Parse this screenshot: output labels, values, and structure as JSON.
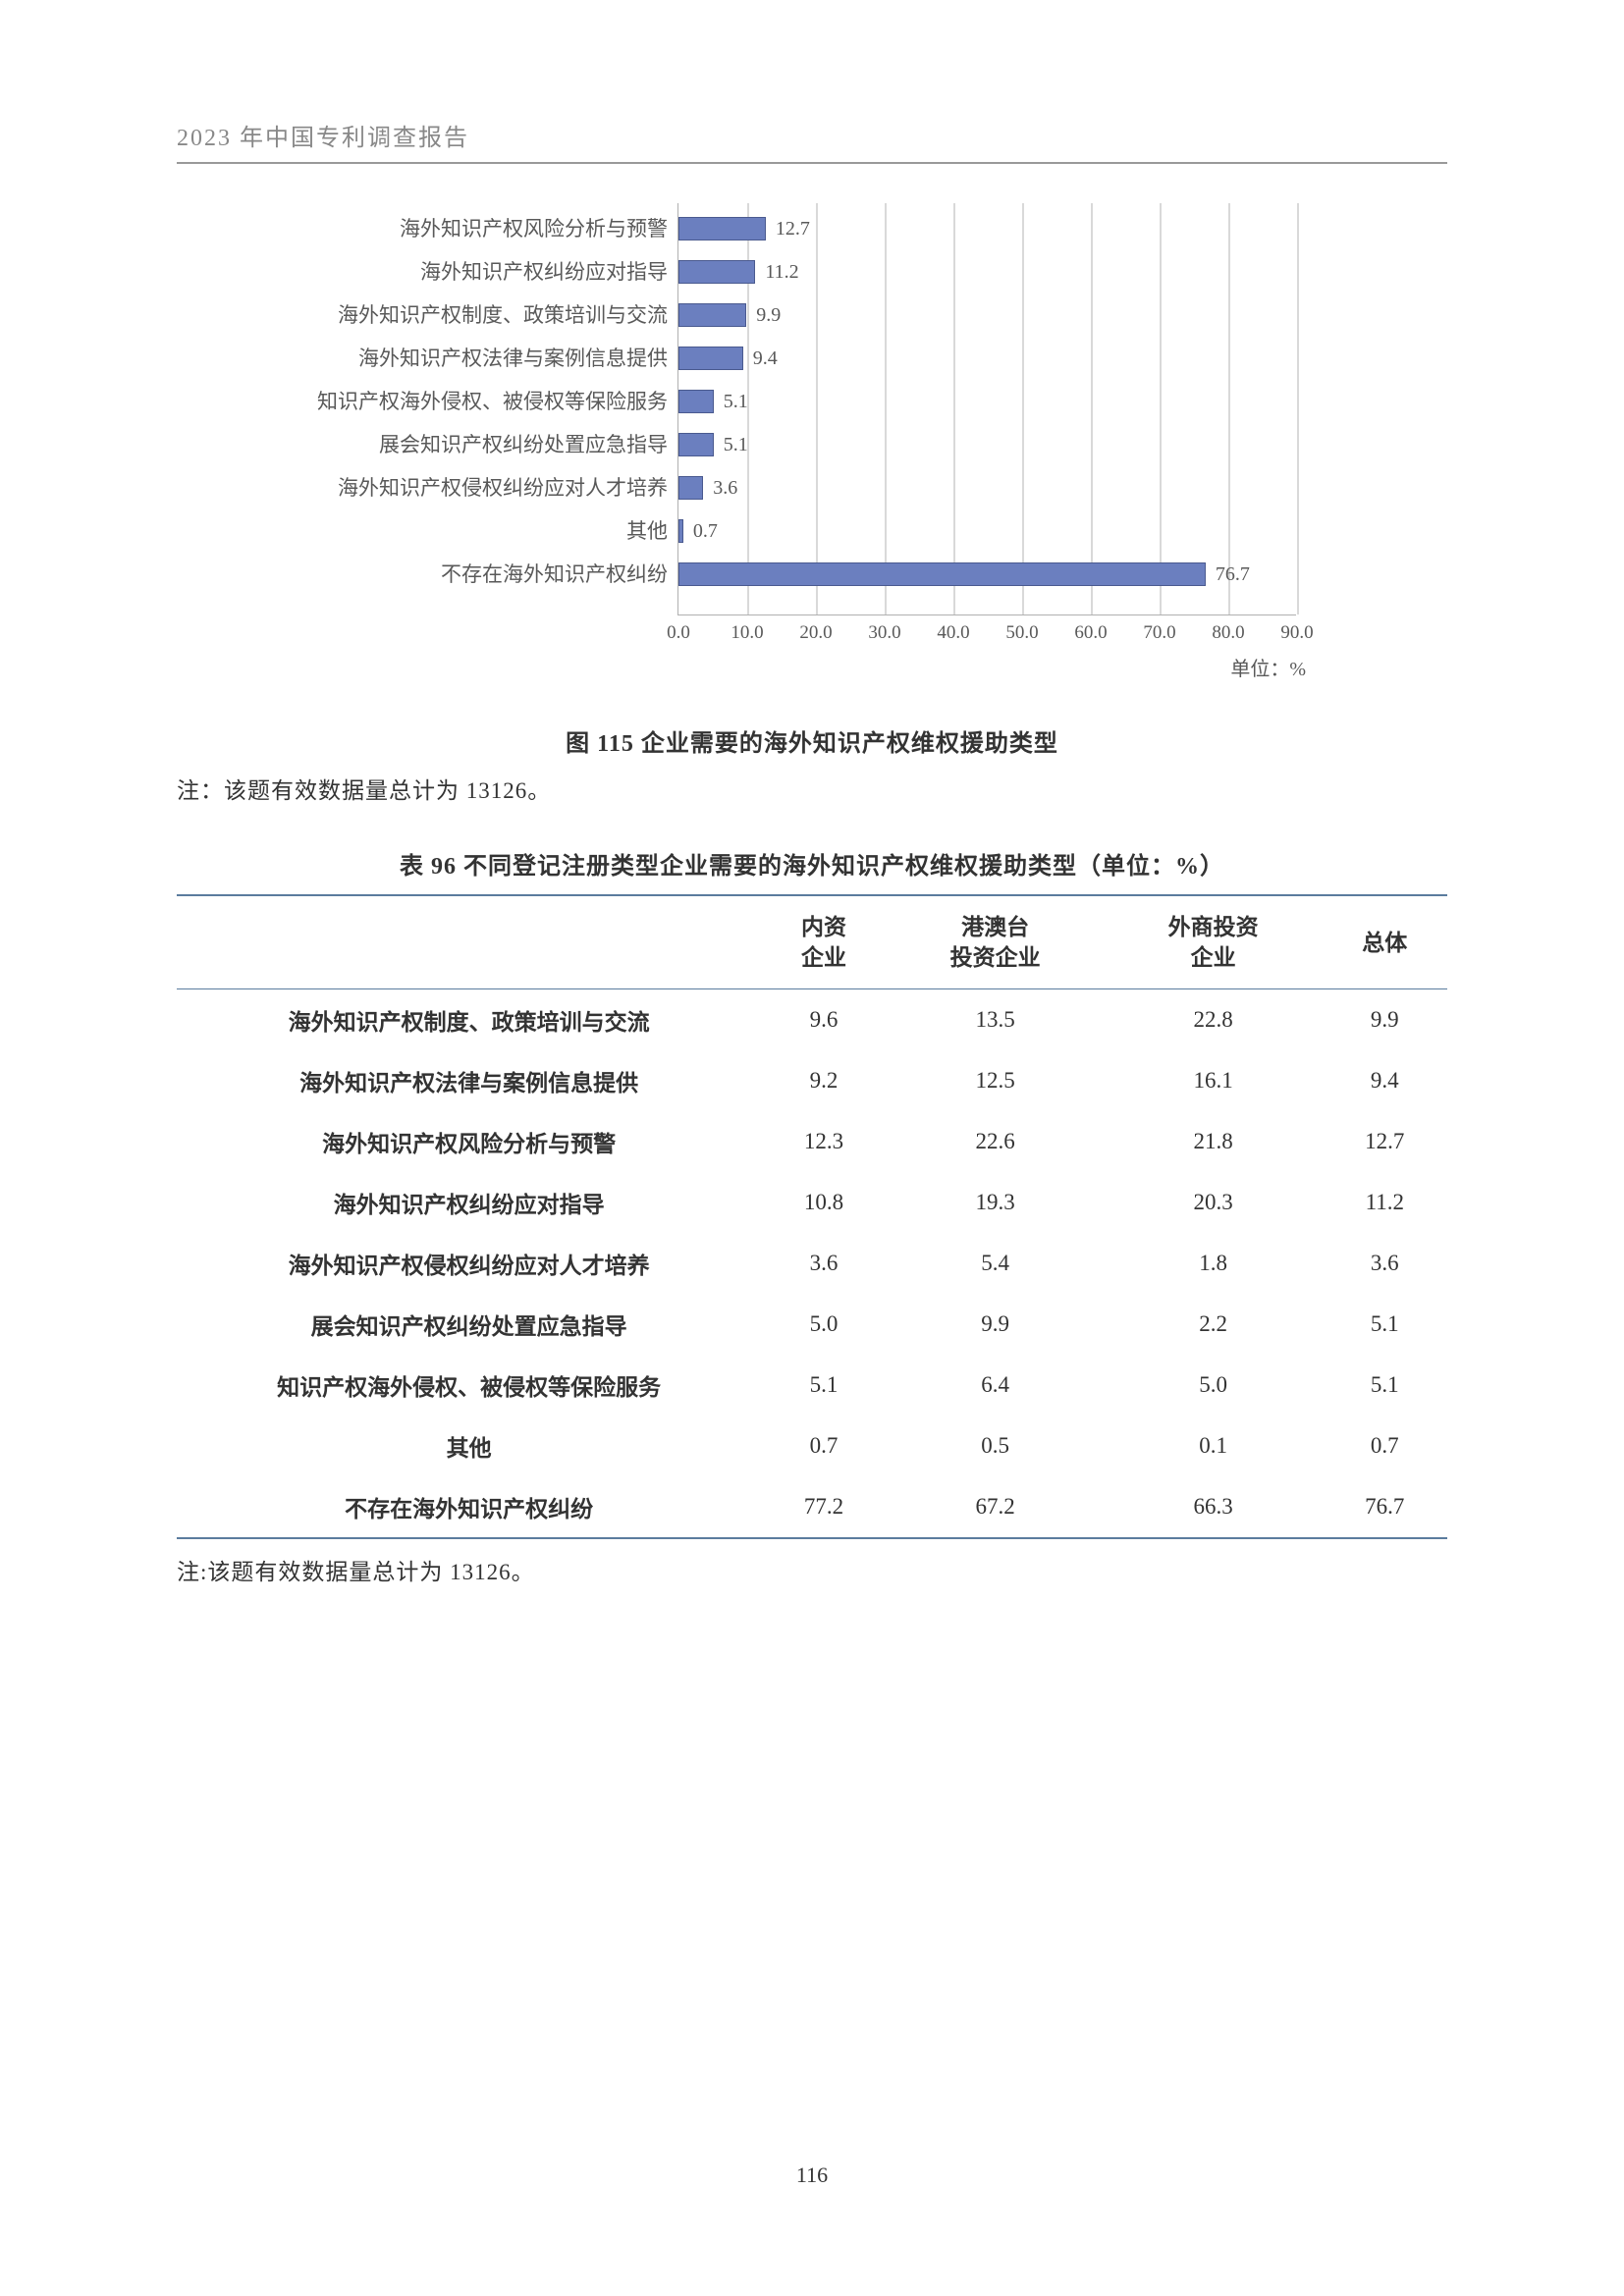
{
  "header": "2023 年中国专利调查报告",
  "page_number": "116",
  "chart": {
    "type": "horizontal_bar",
    "categories": [
      "海外知识产权风险分析与预警",
      "海外知识产权纠纷应对指导",
      "海外知识产权制度、政策培训与交流",
      "海外知识产权法律与案例信息提供",
      "知识产权海外侵权、被侵权等保险服务",
      "展会知识产权纠纷处置应急指导",
      "海外知识产权侵权纠纷应对人才培养",
      "其他",
      "不存在海外知识产权纠纷"
    ],
    "values": [
      12.7,
      11.2,
      9.9,
      9.4,
      5.1,
      5.1,
      3.6,
      0.7,
      76.7
    ],
    "bar_color": "#6b7fbf",
    "bar_border_color": "#4a5a8f",
    "xlim": [
      0,
      90
    ],
    "xtick_step": 10,
    "xtick_labels": [
      "0.0",
      "10.0",
      "20.0",
      "30.0",
      "40.0",
      "50.0",
      "60.0",
      "70.0",
      "80.0",
      "90.0"
    ],
    "grid_color": "#d9d9d9",
    "axis_color": "#b0b0b0",
    "label_color": "#595959",
    "label_fontsize": 21,
    "value_fontsize": 20,
    "unit_label": "单位：%",
    "caption": "图 115  企业需要的海外知识产权维权援助类型",
    "note": "注：该题有效数据量总计为 13126。"
  },
  "table": {
    "caption": "表 96  不同登记注册类型企业需要的海外知识产权维权援助类型（单位：%）",
    "columns": [
      "",
      "内资\n企业",
      "港澳台\n投资企业",
      "外商投资\n企业",
      "总体"
    ],
    "rows": [
      [
        "海外知识产权制度、政策培训与交流",
        "9.6",
        "13.5",
        "22.8",
        "9.9"
      ],
      [
        "海外知识产权法律与案例信息提供",
        "9.2",
        "12.5",
        "16.1",
        "9.4"
      ],
      [
        "海外知识产权风险分析与预警",
        "12.3",
        "22.6",
        "21.8",
        "12.7"
      ],
      [
        "海外知识产权纠纷应对指导",
        "10.8",
        "19.3",
        "20.3",
        "11.2"
      ],
      [
        "海外知识产权侵权纠纷应对人才培养",
        "3.6",
        "5.4",
        "1.8",
        "3.6"
      ],
      [
        "展会知识产权纠纷处置应急指导",
        "5.0",
        "9.9",
        "2.2",
        "5.1"
      ],
      [
        "知识产权海外侵权、被侵权等保险服务",
        "5.1",
        "6.4",
        "5.0",
        "5.1"
      ],
      [
        "其他",
        "0.7",
        "0.5",
        "0.1",
        "0.7"
      ],
      [
        "不存在海外知识产权纠纷",
        "77.2",
        "67.2",
        "66.3",
        "76.7"
      ]
    ],
    "border_color": "#5b7c9e",
    "header_fontsize": 23,
    "cell_fontsize": 23,
    "note": "注:该题有效数据量总计为 13126。"
  }
}
